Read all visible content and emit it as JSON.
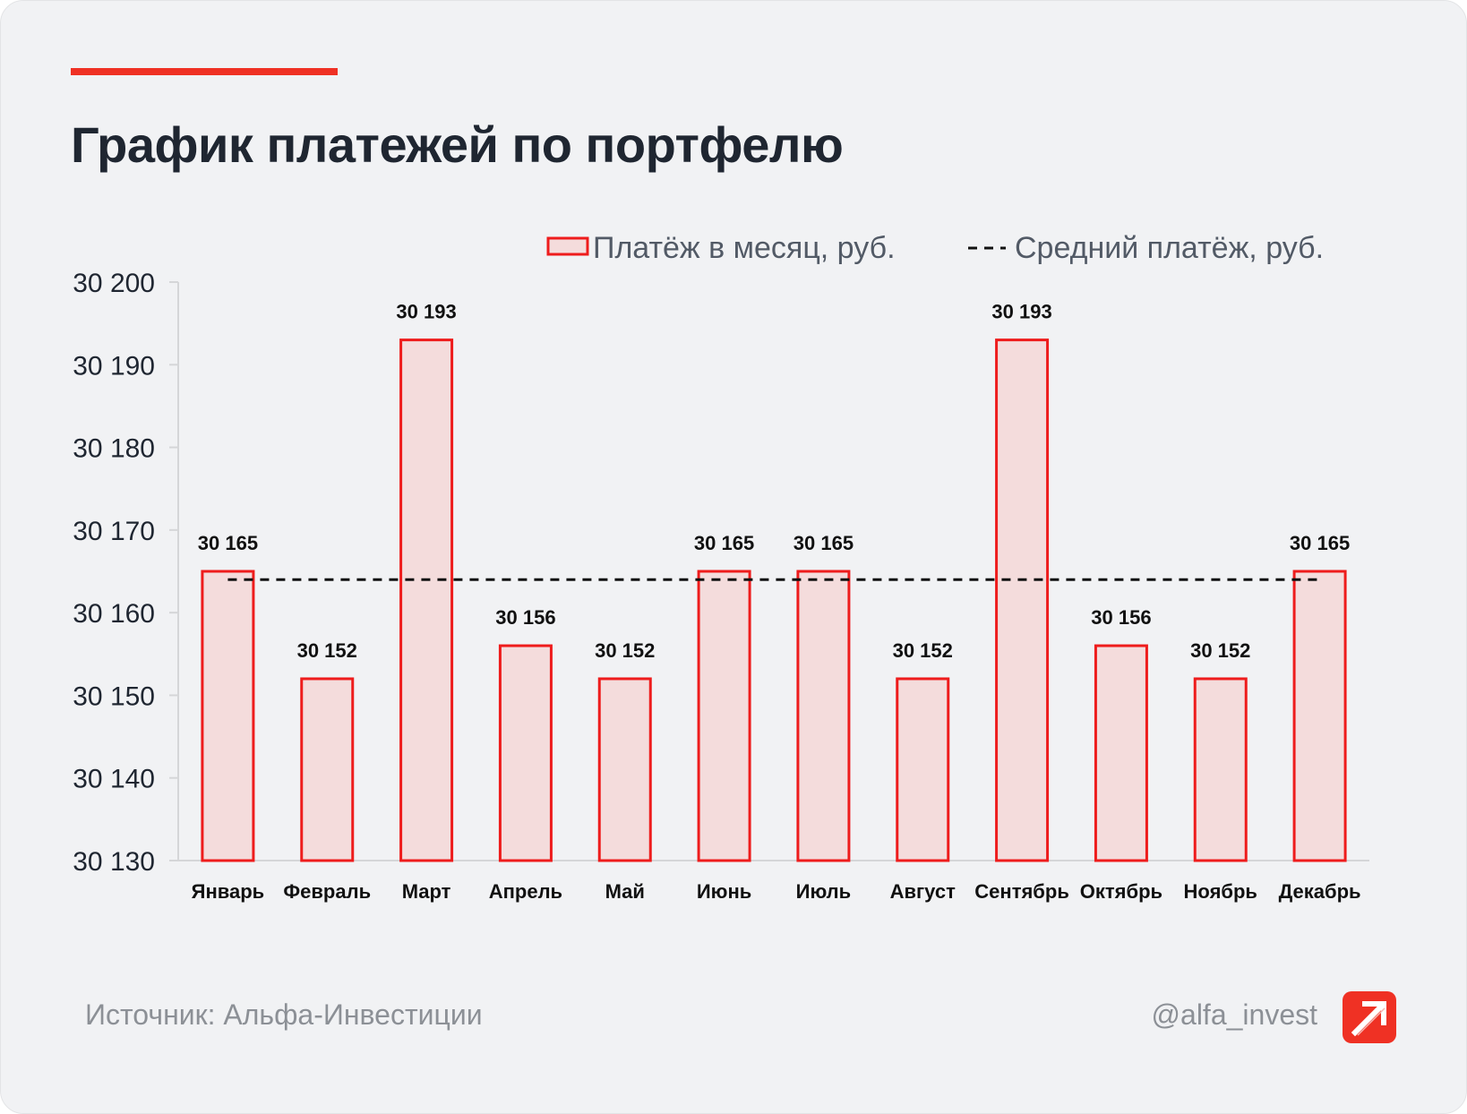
{
  "header": {
    "title": "График платежей по портфелю"
  },
  "legend": {
    "bar_label": "Платёж в месяц, руб.",
    "line_label": "Средний платёж, руб."
  },
  "chart_data": {
    "type": "bar",
    "title": "График платежей по портфелю",
    "categories": [
      "Январь",
      "Февраль",
      "Март",
      "Апрель",
      "Май",
      "Июнь",
      "Июль",
      "Август",
      "Сентябрь",
      "Октябрь",
      "Ноябрь",
      "Декабрь"
    ],
    "series": [
      {
        "name": "Платёж в месяц, руб.",
        "type": "bar",
        "values": [
          30165,
          30152,
          30193,
          30156,
          30152,
          30165,
          30165,
          30152,
          30193,
          30156,
          30152,
          30165
        ],
        "labels": [
          "30 165",
          "30 152",
          "30 193",
          "30 156",
          "30 152",
          "30 165",
          "30 165",
          "30 152",
          "30 193",
          "30 156",
          "30 152",
          "30 165"
        ]
      },
      {
        "name": "Средний платёж, руб.",
        "type": "line",
        "style": "dashed",
        "value": 30164
      }
    ],
    "ylim": [
      30130,
      30200
    ],
    "yticks": [
      30130,
      30140,
      30150,
      30160,
      30170,
      30180,
      30190,
      30200
    ],
    "ytick_labels": [
      "30 130",
      "30 140",
      "30 150",
      "30 160",
      "30 170",
      "30 180",
      "30 190",
      "30 200"
    ],
    "grid": false,
    "legend_position": "top-right",
    "colors": {
      "bar_fill": "#f4dcdc",
      "bar_stroke": "#ee1c1c",
      "line": "#111111",
      "axis": "#d5d6d8"
    }
  },
  "footer": {
    "source": "Источник: Альфа-Инвестиции",
    "handle": "@alfa_invest",
    "logo_icon": "alfa-arrow-icon",
    "logo_color": "#ef3124"
  }
}
